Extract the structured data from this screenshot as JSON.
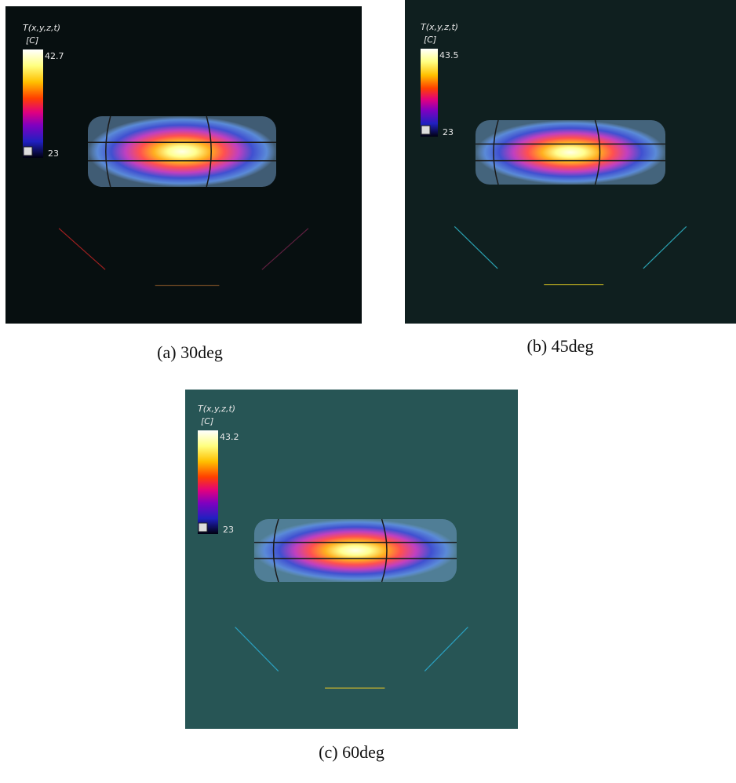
{
  "panels": [
    {
      "variable": "T(x,y,z,t)",
      "unit": "[C]",
      "max": 42.7,
      "min": 23,
      "caption": "(a) 30deg"
    },
    {
      "variable": "T(x,y,z,t)",
      "unit": "[C]",
      "max": 43.5,
      "min": 23,
      "caption": "(b) 45deg"
    },
    {
      "variable": "T(x,y,z,t)",
      "unit": "[C]",
      "max": 43.2,
      "min": 23,
      "caption": "(c) 60deg"
    }
  ]
}
